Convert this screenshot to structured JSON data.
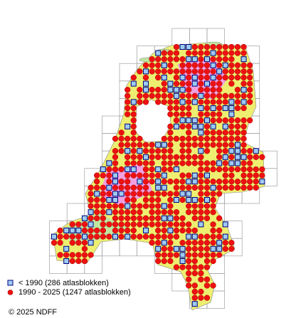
{
  "legend": {
    "items": [
      {
        "label": "< 1990   (286 atlasblokken)"
      },
      {
        "label": "1990 - 2025 (1247 atlasblokken)"
      }
    ]
  },
  "footer": {
    "copyright": "© 2025 NDFF"
  }
}
